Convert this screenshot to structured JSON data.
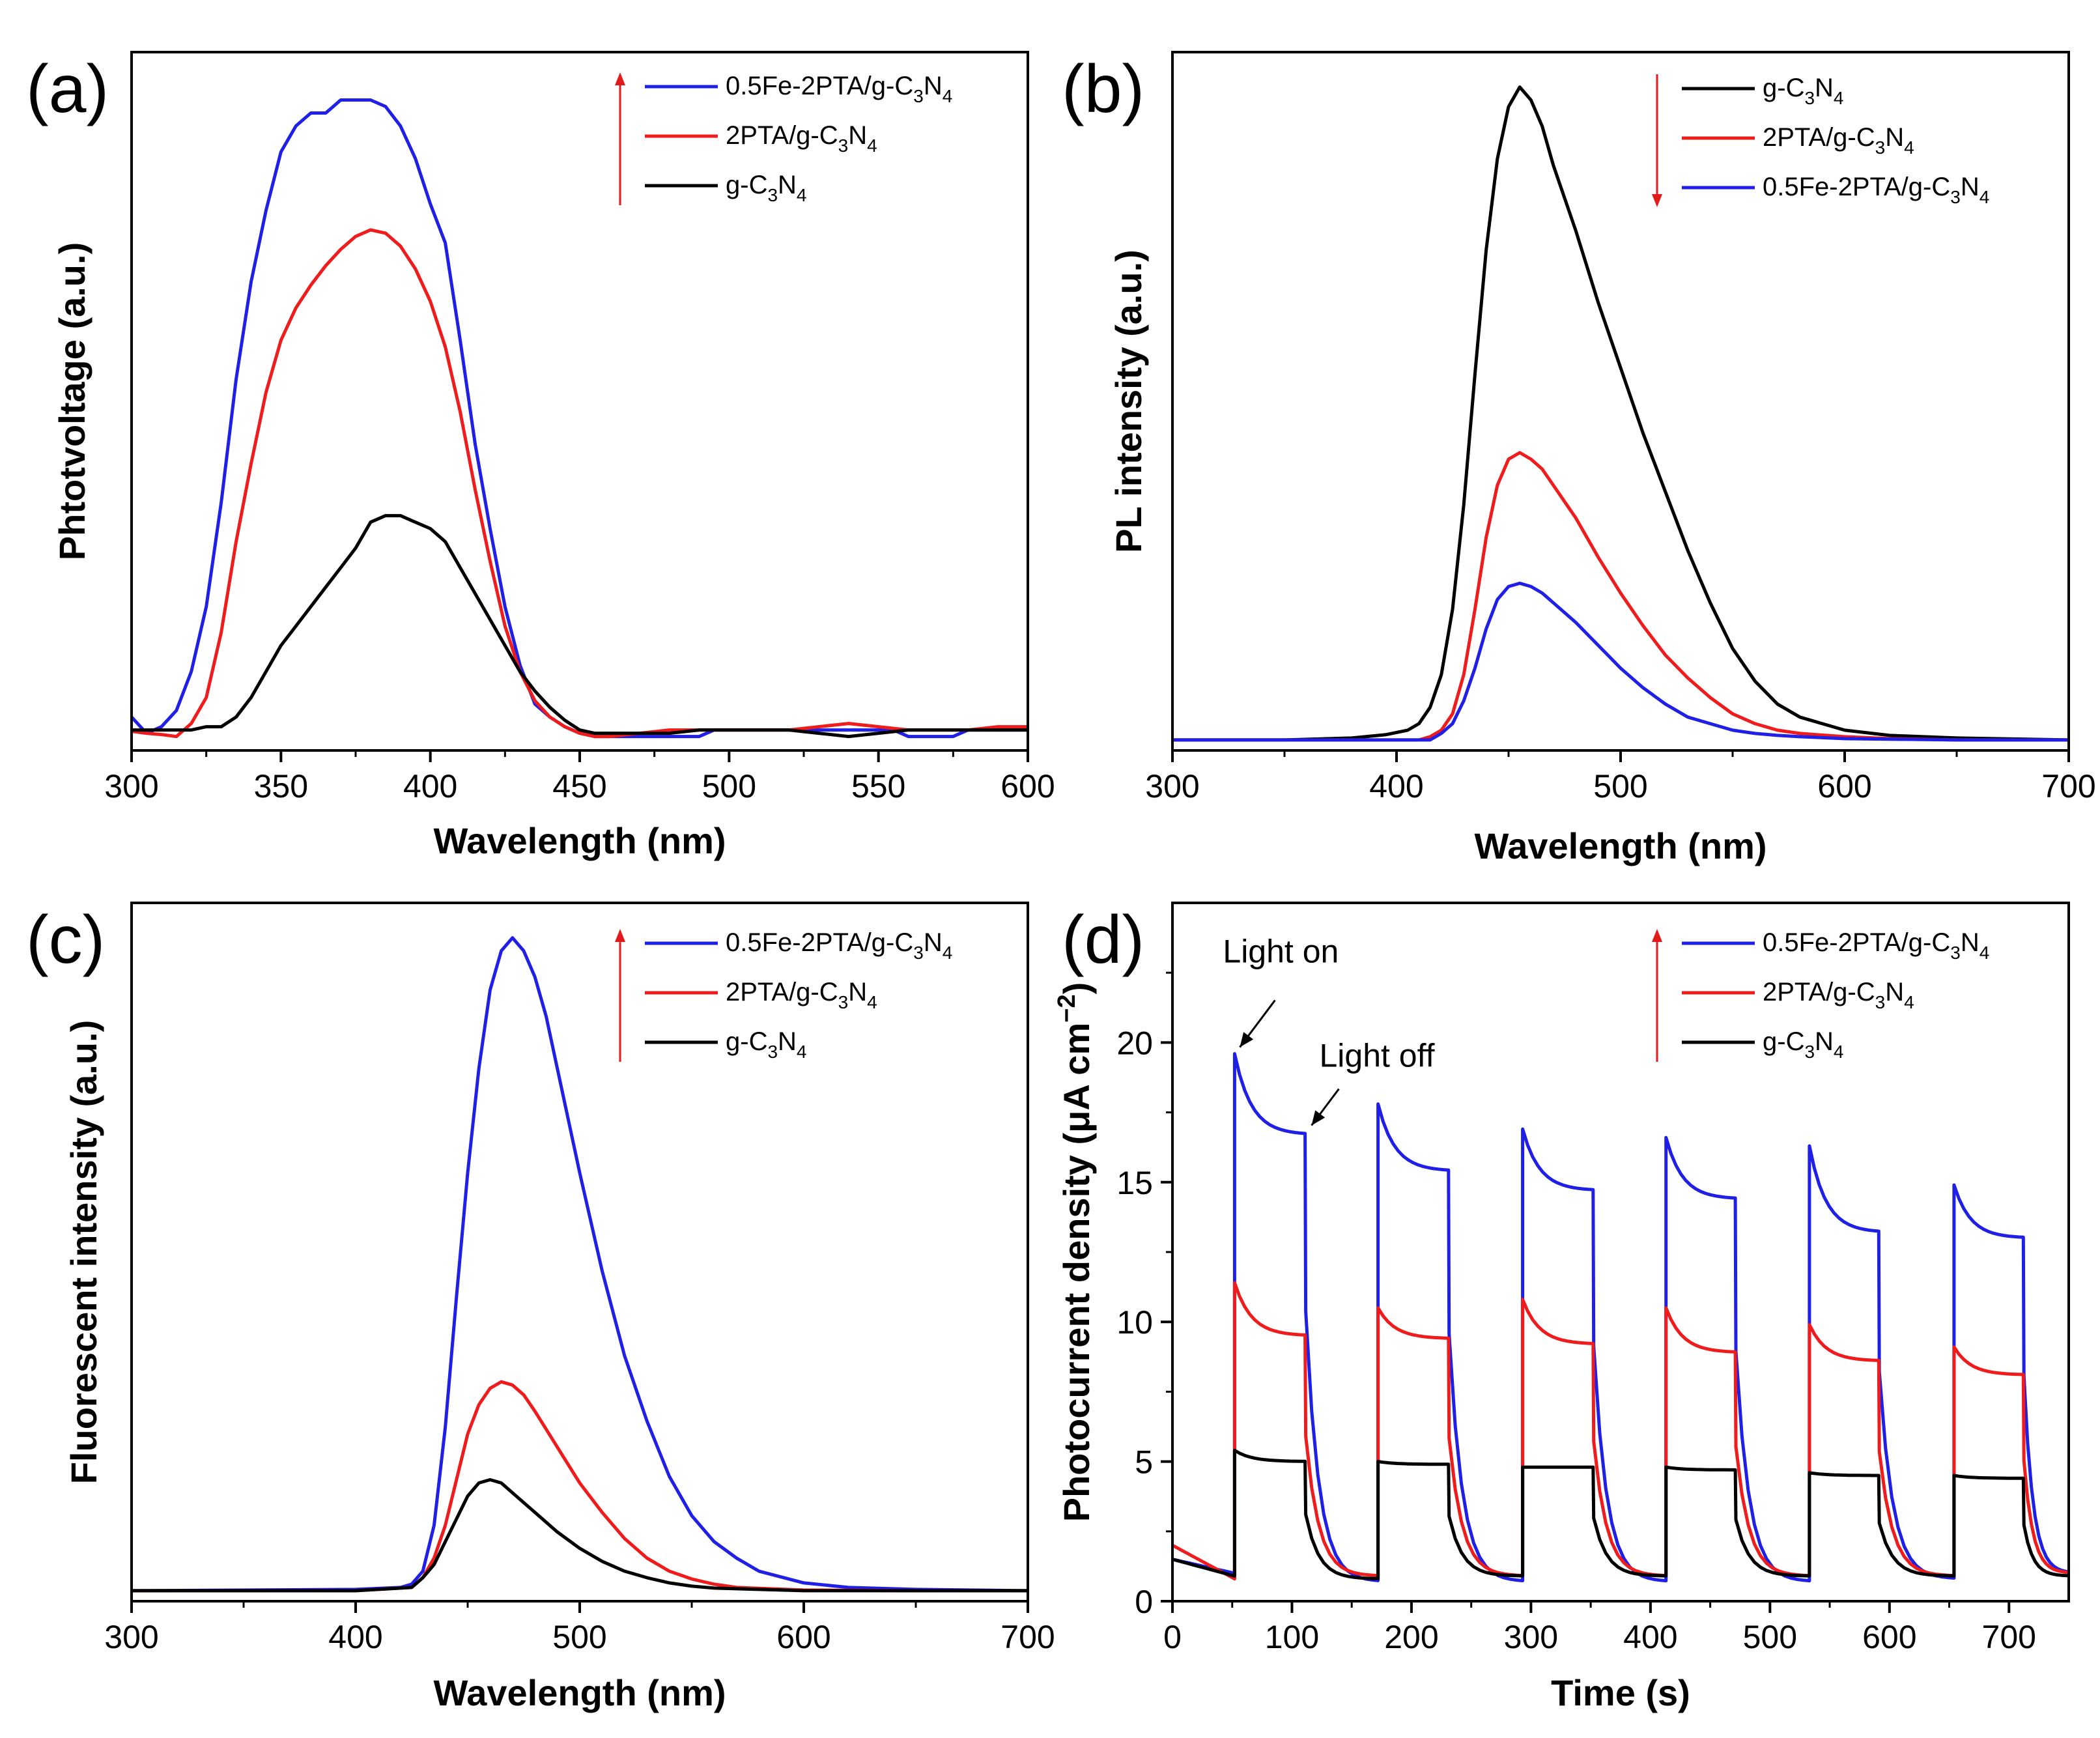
{
  "figure": {
    "colors": {
      "blue": "#1f1fe6",
      "red": "#ee1c1c",
      "black": "#000000",
      "arrow": "#e31a1c"
    }
  },
  "chart_data": [
    {
      "panel": "(a)",
      "type": "line",
      "xlabel": "Wavelength (nm)",
      "ylabel": "Phtotvoltage (a.u.)",
      "xlim": [
        300,
        600
      ],
      "ylim": [
        0,
        100
      ],
      "xticks": [
        300,
        350,
        400,
        450,
        500,
        550,
        600
      ],
      "yticks_shown": false,
      "legend": {
        "position": "top-right",
        "arrow": "up",
        "entries": [
          {
            "name": "0.5Fe-2PTA/g-C",
            "sub1": "3",
            "mid": "N",
            "sub2": "4",
            "color": "#1f1fe6"
          },
          {
            "name": "2PTA/g-C",
            "sub1": "3",
            "mid": "N",
            "sub2": "4",
            "color": "#ee1c1c"
          },
          {
            "name": "g-C",
            "sub1": "3",
            "mid": "N",
            "sub2": "4",
            "color": "#000000"
          }
        ]
      },
      "series": [
        {
          "name": "0.5Fe-2PTA/g-C3N4",
          "color": "#1f1fe6",
          "x": [
            300,
            305,
            310,
            315,
            320,
            325,
            330,
            335,
            340,
            345,
            350,
            355,
            360,
            365,
            370,
            375,
            380,
            385,
            390,
            395,
            400,
            405,
            410,
            415,
            420,
            425,
            430,
            435,
            440,
            445,
            450,
            455,
            460,
            470,
            480,
            490,
            495,
            500,
            505,
            510,
            515,
            520,
            530,
            540,
            550,
            555,
            560,
            565,
            570,
            575,
            580,
            590,
            600
          ],
          "y": [
            3,
            0.5,
            1.5,
            4,
            10,
            20,
            36,
            55,
            70,
            81,
            90,
            94,
            96,
            96,
            98,
            98,
            98,
            97,
            94,
            89,
            82,
            76,
            61,
            45,
            32,
            20,
            11,
            5,
            3,
            1.5,
            0.5,
            0,
            0,
            0,
            0,
            0,
            1,
            1,
            1,
            1,
            1,
            1,
            1,
            1,
            1,
            1,
            0,
            0,
            0,
            0,
            1,
            1,
            1
          ]
        },
        {
          "name": "2PTA/g-C3N4",
          "color": "#ee1c1c",
          "x": [
            300,
            305,
            310,
            315,
            320,
            325,
            330,
            335,
            340,
            345,
            350,
            355,
            360,
            365,
            370,
            375,
            380,
            385,
            390,
            395,
            400,
            405,
            410,
            415,
            420,
            425,
            430,
            435,
            440,
            445,
            450,
            455,
            460,
            470,
            480,
            490,
            500,
            510,
            520,
            530,
            540,
            550,
            560,
            570,
            580,
            590,
            600
          ],
          "y": [
            0.8,
            0.5,
            0.3,
            0,
            2,
            6,
            16,
            30,
            42,
            53,
            61,
            66,
            69.5,
            72.5,
            75,
            77,
            78,
            77.5,
            75.5,
            72,
            67,
            60,
            50,
            38,
            27,
            17,
            10,
            5.5,
            3,
            1.5,
            0.5,
            0,
            0,
            0.5,
            1,
            1,
            1,
            1,
            1,
            1.5,
            2,
            1.5,
            1,
            1,
            1,
            1.5,
            1.5
          ]
        },
        {
          "name": "g-C3N4",
          "color": "#000000",
          "x": [
            300,
            305,
            310,
            315,
            320,
            325,
            330,
            335,
            340,
            345,
            350,
            355,
            360,
            365,
            370,
            375,
            380,
            385,
            390,
            395,
            400,
            405,
            410,
            415,
            420,
            425,
            430,
            435,
            440,
            445,
            450,
            455,
            460,
            470,
            480,
            490,
            500,
            510,
            520,
            530,
            540,
            550,
            560,
            570,
            580,
            590,
            600
          ],
          "y": [
            1,
            1,
            1,
            1,
            1,
            1.5,
            1.5,
            3,
            6,
            10,
            14,
            17,
            20,
            23,
            26,
            29,
            33,
            34,
            34,
            33,
            32,
            30,
            26,
            22,
            18,
            14,
            10,
            7,
            4.5,
            2.5,
            1,
            0.5,
            0.5,
            0.5,
            0.5,
            1,
            1,
            1,
            1,
            0.5,
            0,
            0.5,
            1,
            1,
            1,
            1,
            1
          ]
        }
      ]
    },
    {
      "panel": "(b)",
      "type": "line",
      "xlabel": "Wavelength (nm)",
      "ylabel": "PL intensity (a.u.)",
      "xlim": [
        300,
        700
      ],
      "ylim": [
        0,
        100
      ],
      "xticks": [
        300,
        400,
        500,
        600,
        700
      ],
      "yticks_shown": false,
      "legend": {
        "position": "top-right",
        "arrow": "down",
        "entries": [
          {
            "name": "g-C",
            "sub1": "3",
            "mid": "N",
            "sub2": "4",
            "color": "#000000"
          },
          {
            "name": "2PTA/g-C",
            "sub1": "3",
            "mid": "N",
            "sub2": "4",
            "color": "#ee1c1c"
          },
          {
            "name": "0.5Fe-2PTA/g-C",
            "sub1": "3",
            "mid": "N",
            "sub2": "4",
            "color": "#1f1fe6"
          }
        ]
      },
      "series": [
        {
          "name": "g-C3N4",
          "color": "#000000",
          "x": [
            300,
            350,
            380,
            395,
            405,
            410,
            415,
            420,
            425,
            430,
            435,
            440,
            445,
            450,
            455,
            460,
            465,
            470,
            480,
            490,
            500,
            510,
            520,
            530,
            540,
            550,
            560,
            570,
            580,
            600,
            620,
            650,
            700
          ],
          "y": [
            0,
            0,
            0.3,
            0.8,
            1.5,
            2.5,
            5,
            10,
            20,
            36,
            56,
            75,
            89,
            97,
            100,
            98,
            94,
            88,
            78,
            67,
            57,
            47,
            38,
            29,
            21,
            14,
            9,
            5.5,
            3.5,
            1.5,
            0.7,
            0.3,
            0
          ]
        },
        {
          "name": "2PTA/g-C3N4",
          "color": "#ee1c1c",
          "x": [
            300,
            400,
            410,
            415,
            420,
            425,
            430,
            435,
            440,
            445,
            450,
            455,
            460,
            465,
            470,
            480,
            490,
            500,
            510,
            520,
            530,
            540,
            550,
            560,
            570,
            580,
            600,
            620,
            650,
            700
          ],
          "y": [
            0,
            0,
            0,
            0.5,
            1.5,
            4,
            10,
            20,
            31,
            39,
            43,
            44,
            43,
            41.5,
            39,
            34,
            28,
            22.5,
            17.5,
            13,
            9.5,
            6.5,
            4,
            2.5,
            1.5,
            1,
            0.5,
            0.2,
            0,
            0
          ]
        },
        {
          "name": "0.5Fe-2PTA/g-C3N4",
          "color": "#1f1fe6",
          "x": [
            300,
            400,
            415,
            420,
            425,
            430,
            435,
            440,
            445,
            450,
            455,
            460,
            465,
            470,
            480,
            490,
            500,
            510,
            520,
            530,
            540,
            550,
            560,
            570,
            580,
            600,
            650,
            700
          ],
          "y": [
            0,
            0,
            0,
            1,
            2.5,
            6,
            11,
            17,
            21.5,
            23.5,
            24,
            23.5,
            22.5,
            21,
            18,
            14.5,
            11,
            8,
            5.5,
            3.5,
            2.5,
            1.5,
            1,
            0.7,
            0.5,
            0.2,
            0,
            0
          ]
        }
      ]
    },
    {
      "panel": "(c)",
      "type": "line",
      "xlabel": "Wavelength (nm)",
      "ylabel": "Fluorescent intensity (a.u.)",
      "xlim": [
        300,
        700
      ],
      "ylim": [
        0,
        100
      ],
      "xticks": [
        300,
        400,
        500,
        600,
        700
      ],
      "yticks_shown": false,
      "legend": {
        "position": "top-right",
        "arrow": "up",
        "entries": [
          {
            "name": "0.5Fe-2PTA/g-C",
            "sub1": "3",
            "mid": "N",
            "sub2": "4",
            "color": "#1f1fe6"
          },
          {
            "name": "2PTA/g-C",
            "sub1": "3",
            "mid": "N",
            "sub2": "4",
            "color": "#ee1c1c"
          },
          {
            "name": "g-C",
            "sub1": "3",
            "mid": "N",
            "sub2": "4",
            "color": "#000000"
          }
        ]
      },
      "series": [
        {
          "name": "0.5Fe-2PTA/g-C3N4",
          "color": "#1f1fe6",
          "x": [
            300,
            400,
            420,
            425,
            430,
            435,
            440,
            445,
            450,
            455,
            460,
            465,
            470,
            475,
            480,
            485,
            490,
            500,
            510,
            520,
            530,
            540,
            550,
            560,
            570,
            580,
            600,
            620,
            650,
            700
          ],
          "y": [
            0,
            0.2,
            0.5,
            1,
            3,
            10,
            25,
            45,
            64,
            80,
            92,
            98,
            100,
            98,
            94,
            88,
            80,
            64,
            49,
            36,
            26,
            17.5,
            11.5,
            7.5,
            5,
            3,
            1.2,
            0.5,
            0.2,
            0
          ]
        },
        {
          "name": "2PTA/g-C3N4",
          "color": "#ee1c1c",
          "x": [
            300,
            400,
            425,
            430,
            435,
            440,
            445,
            450,
            455,
            460,
            465,
            470,
            475,
            480,
            490,
            500,
            510,
            520,
            530,
            540,
            550,
            560,
            570,
            600,
            650,
            700
          ],
          "y": [
            0,
            0,
            0.5,
            2,
            5,
            10,
            17,
            24,
            28.5,
            31,
            32,
            31.5,
            30,
            27.5,
            22,
            16.5,
            12,
            8,
            5,
            3,
            1.8,
            1,
            0.5,
            0.1,
            0,
            0
          ]
        },
        {
          "name": "g-C3N4",
          "color": "#000000",
          "x": [
            300,
            400,
            425,
            430,
            435,
            440,
            445,
            450,
            455,
            460,
            465,
            470,
            475,
            480,
            490,
            500,
            510,
            520,
            530,
            540,
            550,
            560,
            600,
            650,
            700
          ],
          "y": [
            0,
            0,
            0.5,
            2,
            4,
            7.5,
            11,
            14.5,
            16.5,
            17,
            16.5,
            15,
            13.5,
            12,
            9,
            6.5,
            4.5,
            3,
            2,
            1.2,
            0.7,
            0.4,
            0,
            0,
            0
          ]
        }
      ]
    },
    {
      "panel": "(d)",
      "type": "line",
      "xlabel": "Time (s)",
      "ylabel": "Photocurrent density (μA cm",
      "ylabel_sup": "−2",
      "ylabel_close": ")",
      "xlim": [
        0,
        750
      ],
      "ylim": [
        0,
        25
      ],
      "xticks": [
        0,
        100,
        200,
        300,
        400,
        500,
        600,
        700
      ],
      "yticks": [
        0,
        5,
        10,
        15,
        20
      ],
      "yticks_shown": true,
      "annotations": [
        {
          "text": "Light on",
          "target": [
            52,
            19.6
          ]
        },
        {
          "text": "Light off",
          "target": [
            112,
            16.8
          ]
        }
      ],
      "legend": {
        "position": "top-right",
        "arrow": "up",
        "entries": [
          {
            "name": "0.5Fe-2PTA/g-C",
            "sub1": "3",
            "mid": "N",
            "sub2": "4",
            "color": "#1f1fe6"
          },
          {
            "name": "2PTA/g-C",
            "sub1": "3",
            "mid": "N",
            "sub2": "4",
            "color": "#ee1c1c"
          },
          {
            "name": "g-C",
            "sub1": "3",
            "mid": "N",
            "sub2": "4",
            "color": "#000000"
          }
        ]
      },
      "on_periods": [
        [
          52,
          111
        ],
        [
          172,
          231
        ],
        [
          293,
          352
        ],
        [
          413,
          471
        ],
        [
          533,
          591
        ],
        [
          654,
          712
        ]
      ],
      "series": [
        {
          "name": "0.5Fe-2PTA/g-C3N4",
          "color": "#1f1fe6",
          "baseline_start": 1.5,
          "baseline_end": 1.0,
          "peaks": [
            19.6,
            17.8,
            16.9,
            16.6,
            16.3,
            14.9
          ],
          "plateaus": [
            16.7,
            15.4,
            14.7,
            14.4,
            13.2,
            13.0
          ],
          "dark": [
            1.0,
            0.7,
            0.7,
            0.7,
            0.7,
            0.8
          ]
        },
        {
          "name": "2PTA/g-C3N4",
          "color": "#ee1c1c",
          "baseline_start": 2.0,
          "baseline_end": 1.0,
          "peaks": [
            11.4,
            10.5,
            10.8,
            10.5,
            9.9,
            9.1
          ],
          "plateaus": [
            9.5,
            9.4,
            9.2,
            8.9,
            8.6,
            8.1
          ],
          "dark": [
            0.8,
            0.9,
            0.9,
            0.9,
            0.9,
            0.9
          ]
        },
        {
          "name": "g-C3N4",
          "color": "#000000",
          "baseline_start": 1.5,
          "baseline_end": 0.9,
          "peaks": [
            5.4,
            5.0,
            4.8,
            4.8,
            4.6,
            4.5
          ],
          "plateaus": [
            5.0,
            4.9,
            4.8,
            4.7,
            4.5,
            4.4
          ],
          "dark": [
            0.9,
            0.8,
            0.9,
            0.9,
            0.9,
            0.9
          ]
        }
      ]
    }
  ]
}
